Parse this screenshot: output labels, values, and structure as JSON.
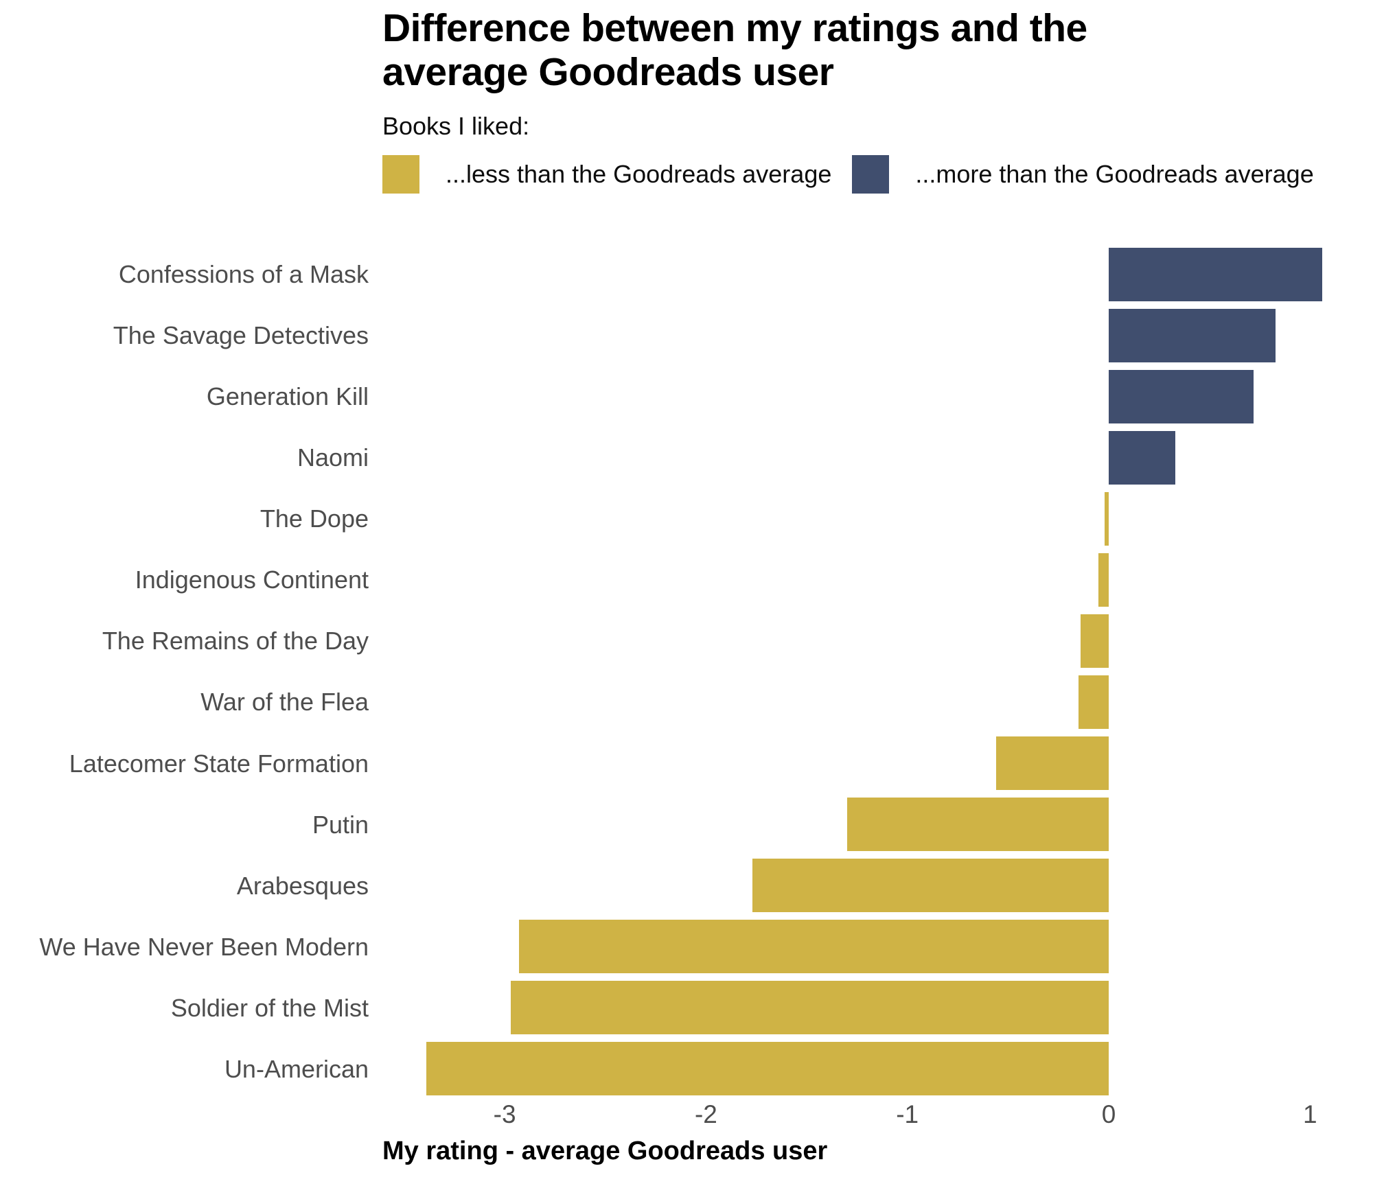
{
  "title": "Difference between my ratings and the average Goodreads user",
  "subtitle": "Books I liked:",
  "legend": {
    "less_label": "...less than the Goodreads average",
    "more_label": "...more than the Goodreads average",
    "less_color": "#CFB345",
    "more_color": "#404E6E"
  },
  "xaxis": {
    "title": "My rating - average Goodreads user",
    "ticks": [
      -3,
      -2,
      -1,
      0,
      1
    ]
  },
  "chart_data": {
    "type": "bar",
    "orientation": "horizontal",
    "title": "Difference between my ratings and the average Goodreads user",
    "xlabel": "My rating - average Goodreads user",
    "ylabel": "",
    "xlim": [
      -3.61,
      1.28
    ],
    "grid": false,
    "categories": [
      "Confessions of a Mask",
      "The Savage Detectives",
      "Generation Kill",
      "Naomi",
      "The Dope",
      "Indigenous Continent",
      "The Remains of the Day",
      "War of the Flea",
      "Latecomer State Formation",
      "Putin",
      "Arabesques",
      "We Have Never Been Modern",
      "Soldier of the Mist",
      "Un-American"
    ],
    "values": [
      1.06,
      0.83,
      0.72,
      0.33,
      -0.02,
      -0.05,
      -0.14,
      -0.15,
      -0.56,
      -1.3,
      -1.77,
      -2.93,
      -2.97,
      -3.39
    ],
    "positive_color": "#404E6E",
    "negative_color": "#CFB345",
    "positive_meaning": "liked more than the Goodreads average",
    "negative_meaning": "liked less than the Goodreads average"
  }
}
